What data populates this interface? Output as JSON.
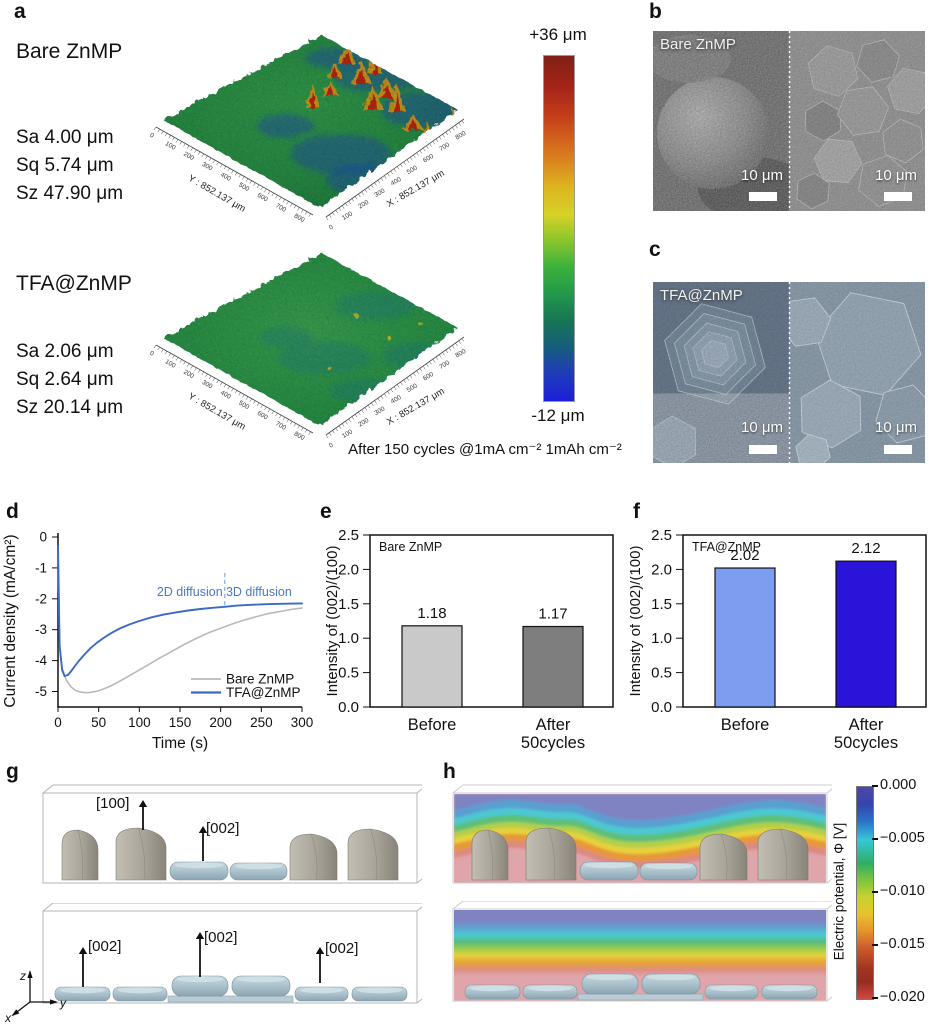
{
  "panel_a": {
    "label": "a",
    "samples": [
      {
        "name": "Bare ZnMP",
        "stats": [
          "Sa 4.00 μm",
          "Sq 5.74 μm",
          "Sz 47.90 μm"
        ]
      },
      {
        "name": "TFA@ZnMP",
        "stats": [
          "Sa 2.06 μm",
          "Sq 2.64 μm",
          "Sz 20.14 μm"
        ]
      }
    ],
    "surface_axis_x": "X : 852.137 μm",
    "surface_axis_y": "Y : 852.137 μm",
    "surface_ticks": [
      "0",
      "100",
      "200",
      "300",
      "400",
      "500",
      "600",
      "700",
      "800"
    ],
    "colorbar": {
      "top_label": "+36 μm",
      "bottom_label": "-12 μm",
      "colors": [
        [
          "#7f2017",
          0
        ],
        [
          "#a62418",
          9
        ],
        [
          "#c54019",
          18
        ],
        [
          "#d9761d",
          28
        ],
        [
          "#dcb51f",
          38
        ],
        [
          "#d6d226",
          46
        ],
        [
          "#8ec72b",
          53
        ],
        [
          "#3cb23b",
          61
        ],
        [
          "#22984a",
          69
        ],
        [
          "#177556",
          77
        ],
        [
          "#155f78",
          84
        ],
        [
          "#1f3fb4",
          91
        ],
        [
          "#1c20d8",
          100
        ]
      ]
    },
    "caption": "After 150 cycles @1mA cm⁻² 1mAh cm⁻²"
  },
  "panel_b": {
    "label": "b",
    "title": "Bare ZnMP",
    "scale_left": "10 μm",
    "scale_right": "10 μm"
  },
  "panel_c": {
    "label": "c",
    "title": "TFA@ZnMP",
    "scale_left": "10 μm",
    "scale_right": "10 μm"
  },
  "panel_d": {
    "label": "d"
  },
  "panel_e": {
    "label": "e"
  },
  "panel_f": {
    "label": "f"
  },
  "panel_g": {
    "label": "g",
    "labels_top": [
      "[100]",
      "[002]"
    ],
    "labels_bottom": [
      "[002]",
      "[002]",
      "[002]"
    ],
    "axis_labels": {
      "z": "z",
      "y": "y",
      "x": "x"
    }
  },
  "panel_h": {
    "label": "h",
    "colorbar": {
      "title": "Electric potential, Φ [V]",
      "ticks": [
        "0.000",
        "−0.005",
        "−0.010",
        "−0.015",
        "−0.020"
      ],
      "colors": [
        [
          "#4c49a6",
          0
        ],
        [
          "#3544ad",
          8
        ],
        [
          "#2e6ec9",
          16
        ],
        [
          "#35c8d8",
          25
        ],
        [
          "#2fae62",
          36
        ],
        [
          "#7fc43e",
          44
        ],
        [
          "#c8d22f",
          52
        ],
        [
          "#e8c32b",
          60
        ],
        [
          "#e6922e",
          68
        ],
        [
          "#cc5c2a",
          76
        ],
        [
          "#a63524",
          85
        ],
        [
          "#952c20",
          92
        ],
        [
          "#cf4a42",
          100
        ]
      ]
    }
  },
  "chart_data": [
    {
      "id": "d",
      "type": "line",
      "xlabel": "Time (s)",
      "ylabel": "Current density (mA/cm²)",
      "xlim": [
        0,
        300
      ],
      "ylim": [
        -5.5,
        0
      ],
      "xticks": [
        0,
        50,
        100,
        150,
        200,
        250,
        300
      ],
      "yticks": [
        0,
        -1,
        -2,
        -3,
        -4,
        -5
      ],
      "series": [
        {
          "name": "Bare ZnMP",
          "color": "#b9b9b9",
          "x": [
            0,
            2,
            5,
            10,
            16,
            22,
            28,
            34,
            40,
            48,
            56,
            65,
            75,
            85,
            95,
            110,
            125,
            140,
            155,
            170,
            185,
            200,
            215,
            230,
            245,
            260,
            275,
            290,
            300
          ],
          "y": [
            -0.3,
            -3.6,
            -4.25,
            -4.62,
            -4.85,
            -4.97,
            -5.02,
            -5.04,
            -5.03,
            -4.99,
            -4.92,
            -4.82,
            -4.68,
            -4.53,
            -4.38,
            -4.15,
            -3.92,
            -3.7,
            -3.48,
            -3.28,
            -3.1,
            -2.95,
            -2.81,
            -2.68,
            -2.57,
            -2.47,
            -2.4,
            -2.33,
            -2.3
          ]
        },
        {
          "name": "TFA@ZnMP",
          "color": "#3a6ac5",
          "x": [
            0,
            2,
            5,
            8,
            12,
            16,
            20,
            26,
            32,
            40,
            48,
            56,
            66,
            76,
            88,
            100,
            115,
            130,
            145,
            160,
            175,
            190,
            205,
            220,
            240,
            260,
            280,
            300
          ],
          "y": [
            -0.3,
            -3.5,
            -4.3,
            -4.5,
            -4.47,
            -4.35,
            -4.2,
            -4.0,
            -3.82,
            -3.6,
            -3.42,
            -3.27,
            -3.1,
            -2.96,
            -2.83,
            -2.72,
            -2.6,
            -2.51,
            -2.44,
            -2.38,
            -2.33,
            -2.29,
            -2.26,
            -2.22,
            -2.19,
            -2.17,
            -2.16,
            -2.15
          ]
        }
      ],
      "annotations": [
        {
          "text": "2D diffusion",
          "x": 162,
          "color": "#4a78c8"
        },
        {
          "text": "3D diffusion",
          "x": 247,
          "color": "#4a78c8"
        }
      ],
      "divider_x": 205,
      "legend_position": "bottom-right"
    },
    {
      "id": "e",
      "type": "bar",
      "title": "Bare ZnMP",
      "ylabel": "Intensity of (002)/(100)",
      "ylim": [
        0,
        2.5
      ],
      "yticks": [
        "0.0",
        "0.5",
        "1.0",
        "1.5",
        "2.0",
        "2.5"
      ],
      "categories": [
        [
          "Before"
        ],
        [
          "After",
          "50cycles"
        ]
      ],
      "values": [
        1.18,
        1.17
      ],
      "value_labels": [
        "1.18",
        "1.17"
      ],
      "bar_colors": [
        "#c9c9c9",
        "#7e7e7e"
      ]
    },
    {
      "id": "f",
      "type": "bar",
      "title": "TFA@ZnMP",
      "ylabel": "Intensity of (002)/(100)",
      "ylim": [
        0,
        2.5
      ],
      "yticks": [
        "0.0",
        "0.5",
        "1.0",
        "1.5",
        "2.0",
        "2.5"
      ],
      "categories": [
        [
          "Before"
        ],
        [
          "After",
          "50cycles"
        ]
      ],
      "values": [
        2.02,
        2.12
      ],
      "value_labels": [
        "2.02",
        "2.12"
      ],
      "bar_colors": [
        "#7d9df1",
        "#2a14da"
      ]
    }
  ]
}
